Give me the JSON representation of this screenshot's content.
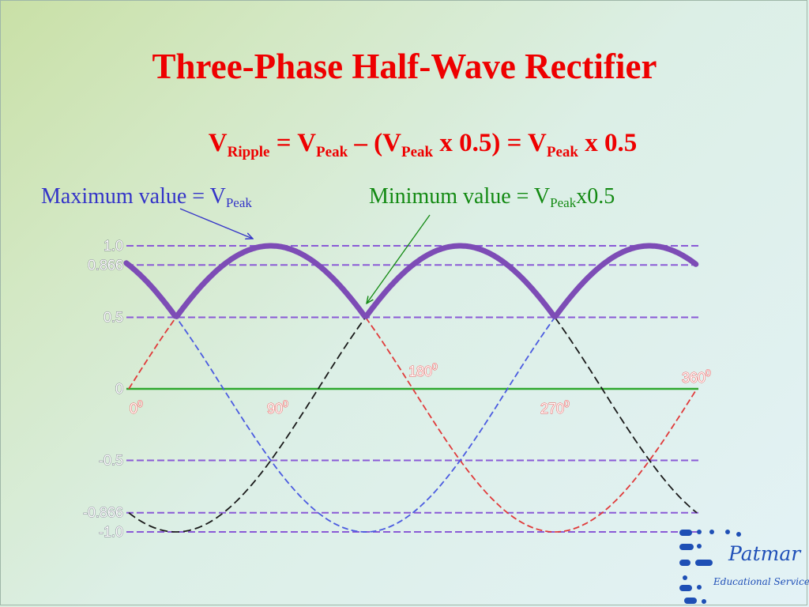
{
  "slide": {
    "title": "Three-Phase Half-Wave Rectifier",
    "formula": {
      "v1": "V",
      "s1": "Ripple",
      "eq1": " = V",
      "s2": "Peak",
      "mid": " – (V",
      "s3": "Peak",
      "tail": " x 0.5) = V",
      "s4": "Peak",
      "end": " x 0.5"
    },
    "max_label": {
      "text": "Maximum value = V",
      "sub": "Peak"
    },
    "min_label": {
      "text": "Minimum value = V",
      "sub": "Peak",
      "suffix": "x0.5"
    }
  },
  "chart_data": {
    "type": "line",
    "x_unit": "degrees",
    "x_range": [
      0,
      360
    ],
    "ylim": [
      -1.0,
      1.0
    ],
    "y_tick_labels": [
      "1.0",
      "0.866",
      "0.5",
      "0",
      "-0.5",
      "-0.866",
      "-1.0"
    ],
    "reference_lines": [
      1.0,
      0.866,
      0.5,
      -0.5,
      -0.866,
      -1.0
    ],
    "x_tick_labels": [
      {
        "value": 0,
        "text": "0",
        "sup": "0"
      },
      {
        "value": 90,
        "text": "90",
        "sup": "0"
      },
      {
        "value": 180,
        "text": "180",
        "sup": "0"
      },
      {
        "value": 270,
        "text": "270",
        "sup": "0"
      },
      {
        "value": 360,
        "text": "360",
        "sup": "0"
      }
    ],
    "series": [
      {
        "function": "sin(x)",
        "color": "#e03a3a",
        "style": "dashed"
      },
      {
        "function": "sin(x - 120)",
        "color": "#1a1a1a",
        "style": "dashed"
      },
      {
        "function": "sin(x + 120)",
        "color": "#4b5be0",
        "style": "dashed"
      },
      {
        "function": "max of the three phases",
        "color": "#7d4cb6",
        "style": "thick",
        "x_range": [
          -120,
          360
        ]
      }
    ],
    "colors": {
      "zero_line": "#2ea82e",
      "reference_line": "#8a5ad6"
    }
  },
  "logo": {
    "name": "Patmar",
    "subtitle": "Educational Services"
  }
}
